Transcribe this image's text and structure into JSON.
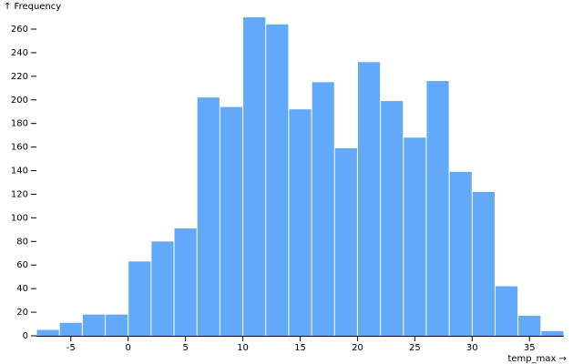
{
  "chart_data": {
    "type": "histogram",
    "y_label": "↑ Frequency",
    "x_label": "temp_max →",
    "bins": [
      -8,
      -6,
      -4,
      -2,
      0,
      2,
      4,
      6,
      8,
      10,
      12,
      14,
      16,
      18,
      20,
      22,
      24,
      26,
      28,
      30,
      32,
      34,
      36,
      38
    ],
    "values": [
      5,
      11,
      18,
      18,
      63,
      80,
      91,
      202,
      194,
      270,
      264,
      192,
      215,
      159,
      232,
      199,
      168,
      216,
      139,
      122,
      42,
      17,
      4
    ],
    "color": "#63a9fa",
    "xlim": [
      -8,
      38
    ],
    "xticks": [
      -5,
      0,
      5,
      10,
      15,
      20,
      25,
      30,
      35
    ],
    "ylim": [
      0,
      260
    ],
    "yticks": [
      0,
      20,
      40,
      60,
      80,
      100,
      120,
      140,
      160,
      180,
      200,
      220,
      240,
      260
    ]
  }
}
